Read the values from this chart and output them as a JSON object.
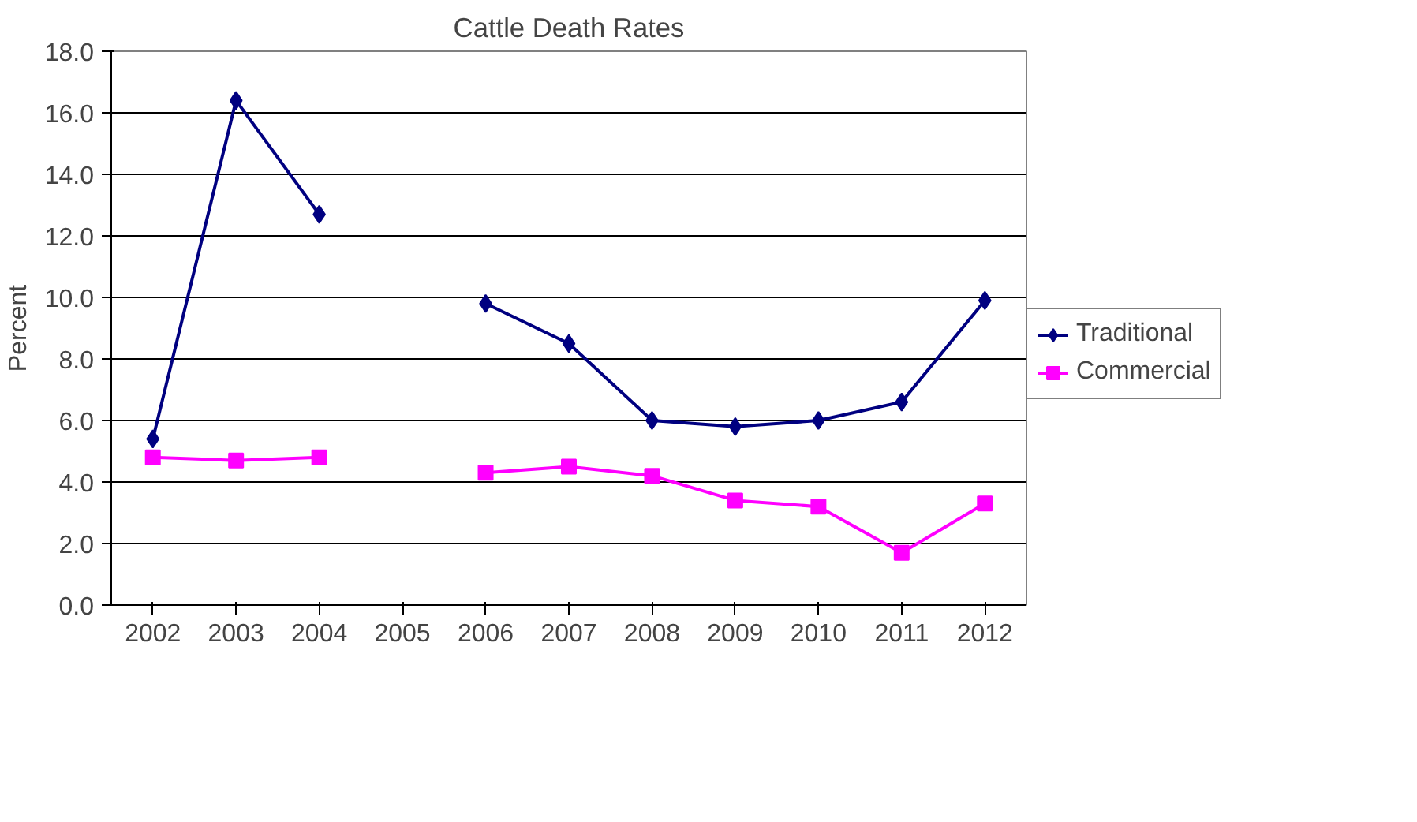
{
  "chart_data": {
    "type": "line",
    "title": "Cattle Death Rates",
    "ylabel": "Percent",
    "categories": [
      "2002",
      "2003",
      "2004",
      "2005",
      "2006",
      "2007",
      "2008",
      "2009",
      "2010",
      "2011",
      "2012"
    ],
    "series": [
      {
        "name": "Traditional",
        "color": "#000080",
        "marker": "diamond",
        "values": [
          5.4,
          16.4,
          12.7,
          null,
          9.8,
          8.5,
          6.0,
          5.8,
          6.0,
          6.6,
          9.9
        ]
      },
      {
        "name": "Commercial",
        "color": "#ff00ff",
        "marker": "square",
        "values": [
          4.8,
          4.7,
          4.8,
          null,
          4.3,
          4.5,
          4.2,
          3.4,
          3.2,
          1.7,
          3.3
        ]
      }
    ],
    "ylim": [
      0,
      18
    ],
    "yticks": [
      {
        "value": 0,
        "label": "0.0"
      },
      {
        "value": 2,
        "label": "2.0"
      },
      {
        "value": 4,
        "label": "4.0"
      },
      {
        "value": 6,
        "label": "6.0"
      },
      {
        "value": 8,
        "label": "8.0"
      },
      {
        "value": 10,
        "label": "10.0"
      },
      {
        "value": 12,
        "label": "12.0"
      },
      {
        "value": 14,
        "label": "14.0"
      },
      {
        "value": 16,
        "label": "16.0"
      },
      {
        "value": 18,
        "label": "18.0"
      }
    ],
    "grid": "y",
    "legend": "right",
    "line_style": "solid"
  }
}
